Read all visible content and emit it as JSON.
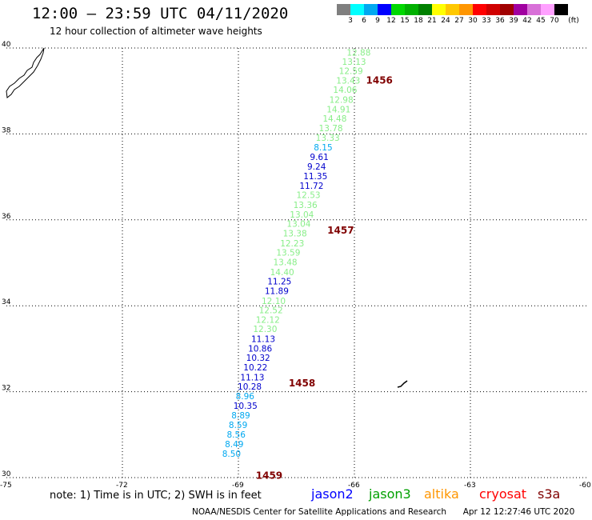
{
  "header": {
    "title": "12:00 — 23:59 UTC 04/11/2020",
    "subtitle": "12 hour collection of altimeter wave heights"
  },
  "legend": {
    "unit": "(ft)",
    "ticks": [
      "3",
      "6",
      "9",
      "12",
      "15",
      "18",
      "21",
      "24",
      "27",
      "30",
      "33",
      "36",
      "39",
      "42",
      "45",
      "70"
    ],
    "colors": [
      "#7f7f7f",
      "#00ffff",
      "#00a8f0",
      "#0000ff",
      "#00d800",
      "#00b000",
      "#008000",
      "#ffff00",
      "#ffc800",
      "#ff9600",
      "#ff0000",
      "#d00000",
      "#a00000",
      "#a000a0",
      "#d870d8",
      "#ffa0ff",
      "#000000"
    ]
  },
  "map": {
    "lat_labels": [
      "40",
      "38",
      "36",
      "34",
      "32",
      "30"
    ],
    "lon_labels": [
      "-75",
      "-72",
      "-69",
      "-66",
      "-63",
      "-60"
    ],
    "pass_labels": [
      {
        "text": "1456",
        "lon": -65.7,
        "lat": 39.25
      },
      {
        "text": "1457",
        "lon": -66.7,
        "lat": 35.75
      },
      {
        "text": "1458",
        "lon": -67.7,
        "lat": 32.2
      },
      {
        "text": "1459",
        "lon": -68.55,
        "lat": 30.05
      }
    ],
    "track": [
      {
        "v": "12.88",
        "lon": -66.2,
        "lat": 39.9,
        "c": "#88ee88"
      },
      {
        "v": "13.13",
        "lon": -66.32,
        "lat": 39.68,
        "c": "#88ee88"
      },
      {
        "v": "12.59",
        "lon": -66.4,
        "lat": 39.47,
        "c": "#88ee88"
      },
      {
        "v": "13.43",
        "lon": -66.47,
        "lat": 39.25,
        "c": "#88ee88"
      },
      {
        "v": "14.06",
        "lon": -66.55,
        "lat": 39.03,
        "c": "#88ee88"
      },
      {
        "v": "12.98",
        "lon": -66.65,
        "lat": 38.8,
        "c": "#88ee88"
      },
      {
        "v": "14.91",
        "lon": -66.72,
        "lat": 38.58,
        "c": "#88ee88"
      },
      {
        "v": "14.48",
        "lon": -66.82,
        "lat": 38.36,
        "c": "#88ee88"
      },
      {
        "v": "13.78",
        "lon": -66.92,
        "lat": 38.14,
        "c": "#88ee88"
      },
      {
        "v": "13.33",
        "lon": -67.0,
        "lat": 37.91,
        "c": "#88ee88"
      },
      {
        "v": "8.15",
        "lon": -67.05,
        "lat": 37.69,
        "c": "#00a8f0"
      },
      {
        "v": "9.61",
        "lon": -67.15,
        "lat": 37.47,
        "c": "#0000cc"
      },
      {
        "v": "9.24",
        "lon": -67.22,
        "lat": 37.24,
        "c": "#0000cc"
      },
      {
        "v": "11.35",
        "lon": -67.32,
        "lat": 37.02,
        "c": "#0000cc"
      },
      {
        "v": "11.72",
        "lon": -67.42,
        "lat": 36.8,
        "c": "#0000cc"
      },
      {
        "v": "12.53",
        "lon": -67.5,
        "lat": 36.58,
        "c": "#88ee88"
      },
      {
        "v": "13.36",
        "lon": -67.58,
        "lat": 36.35,
        "c": "#88ee88"
      },
      {
        "v": "13.04",
        "lon": -67.67,
        "lat": 36.13,
        "c": "#88ee88"
      },
      {
        "v": "13.04",
        "lon": -67.75,
        "lat": 35.91,
        "c": "#88ee88"
      },
      {
        "v": "13.38",
        "lon": -67.85,
        "lat": 35.69,
        "c": "#88ee88"
      },
      {
        "v": "12.23",
        "lon": -67.92,
        "lat": 35.46,
        "c": "#88ee88"
      },
      {
        "v": "13.59",
        "lon": -68.02,
        "lat": 35.24,
        "c": "#88ee88"
      },
      {
        "v": "13.48",
        "lon": -68.1,
        "lat": 35.02,
        "c": "#88ee88"
      },
      {
        "v": "14.40",
        "lon": -68.18,
        "lat": 34.79,
        "c": "#88ee88"
      },
      {
        "v": "11.25",
        "lon": -68.25,
        "lat": 34.57,
        "c": "#0000cc"
      },
      {
        "v": "11.89",
        "lon": -68.32,
        "lat": 34.35,
        "c": "#0000cc"
      },
      {
        "v": "12.10",
        "lon": -68.4,
        "lat": 34.12,
        "c": "#88ee88"
      },
      {
        "v": "12.52",
        "lon": -68.47,
        "lat": 33.9,
        "c": "#88ee88"
      },
      {
        "v": "12.12",
        "lon": -68.55,
        "lat": 33.68,
        "c": "#88ee88"
      },
      {
        "v": "12.30",
        "lon": -68.62,
        "lat": 33.46,
        "c": "#88ee88"
      },
      {
        "v": "11.13",
        "lon": -68.67,
        "lat": 33.23,
        "c": "#0000cc"
      },
      {
        "v": "10.86",
        "lon": -68.75,
        "lat": 33.01,
        "c": "#0000cc"
      },
      {
        "v": "10.32",
        "lon": -68.8,
        "lat": 32.79,
        "c": "#0000cc"
      },
      {
        "v": "10.22",
        "lon": -68.87,
        "lat": 32.57,
        "c": "#0000cc"
      },
      {
        "v": "11.13",
        "lon": -68.95,
        "lat": 32.34,
        "c": "#0000cc"
      },
      {
        "v": "10.28",
        "lon": -69.02,
        "lat": 32.12,
        "c": "#0000cc"
      },
      {
        "v": "8.96",
        "lon": -69.07,
        "lat": 31.9,
        "c": "#00a8f0"
      },
      {
        "v": "10.35",
        "lon": -69.13,
        "lat": 31.68,
        "c": "#0000cc"
      },
      {
        "v": "8.89",
        "lon": -69.18,
        "lat": 31.45,
        "c": "#00a8f0"
      },
      {
        "v": "8.59",
        "lon": -69.25,
        "lat": 31.23,
        "c": "#00a8f0"
      },
      {
        "v": "8.56",
        "lon": -69.3,
        "lat": 31.01,
        "c": "#00a8f0"
      },
      {
        "v": "8.49",
        "lon": -69.35,
        "lat": 30.78,
        "c": "#00a8f0"
      },
      {
        "v": "8.50",
        "lon": -69.42,
        "lat": 30.56,
        "c": "#00a8f0"
      }
    ]
  },
  "footer": {
    "note": "note:  1) Time is in UTC;  2) SWH is in feet",
    "missions": [
      {
        "label": "jason2",
        "color": "#0000ff"
      },
      {
        "label": "jason3",
        "color": "#00a000"
      },
      {
        "label": "altika",
        "color": "#ff9600"
      },
      {
        "label": "cryosat",
        "color": "#ff0000"
      },
      {
        "label": "s3a",
        "color": "#800000"
      }
    ],
    "credit": "NOAA/NESDIS Center for Satellite Applications and Research",
    "timestamp": "Apr 12 12:27:46 UTC 2020"
  }
}
